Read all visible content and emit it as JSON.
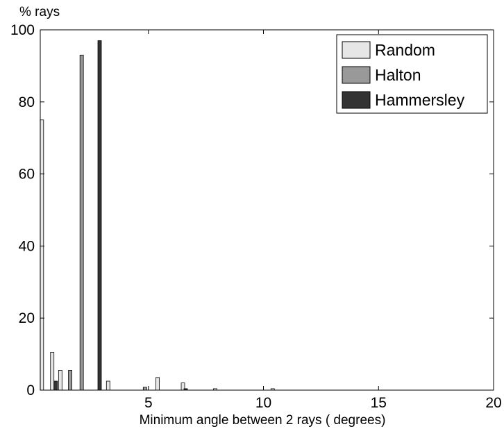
{
  "chart_data": {
    "type": "bar",
    "title": "",
    "xlabel": "Minimum angle between 2 rays ( degrees)",
    "ylabel": "% rays",
    "xlim": [
      0.3,
      20
    ],
    "ylim": [
      0,
      100
    ],
    "xticks": [
      5,
      10,
      15,
      20
    ],
    "yticks": [
      0,
      20,
      40,
      60,
      80,
      100
    ],
    "grid": false,
    "legend_position": "top-right",
    "bar_width": 0.15,
    "series": [
      {
        "name": "Random",
        "color": "#e6e6e6",
        "x": [
          0.37,
          0.82,
          1.17,
          3.25,
          5.4,
          6.5,
          7.9,
          10.4
        ],
        "values": [
          75,
          10.5,
          5.5,
          2.5,
          3.5,
          2.0,
          0.4,
          0.4
        ]
      },
      {
        "name": "Halton",
        "color": "#999999",
        "x": [
          1.6,
          2.1,
          4.85
        ],
        "values": [
          5.5,
          93,
          0.8
        ]
      },
      {
        "name": "Hammersley",
        "color": "#333333",
        "x": [
          0.97,
          2.88,
          6.62
        ],
        "values": [
          2.5,
          97,
          0.4
        ]
      }
    ]
  }
}
